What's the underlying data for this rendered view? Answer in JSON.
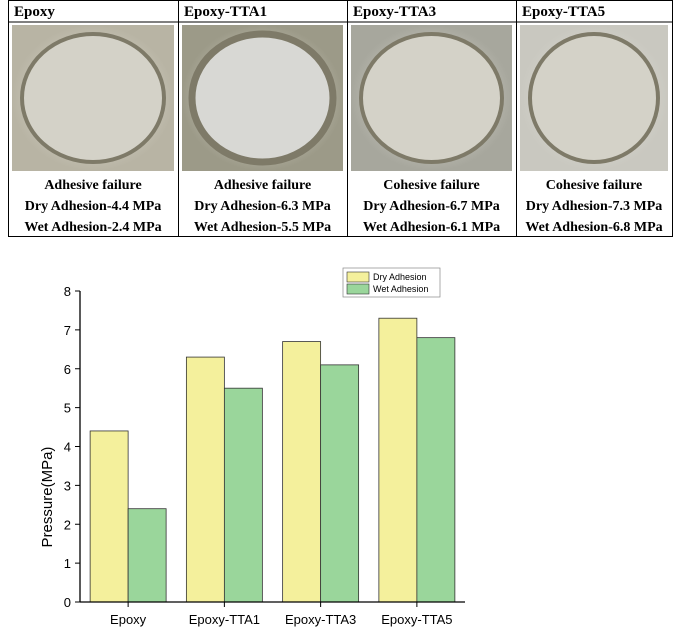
{
  "panels": [
    {
      "title": "Epoxy",
      "failure": "Adhesive failure",
      "dry": "Dry Adhesion-4.4 MPa",
      "wet": "Wet Adhesion-2.4 MPa"
    },
    {
      "title": "Epoxy-TTA1",
      "failure": "Adhesive failure",
      "dry": "Dry Adhesion-6.3 MPa",
      "wet": "Wet Adhesion-5.5 MPa"
    },
    {
      "title": "Epoxy-TTA3",
      "failure": "Cohesive failure",
      "dry": "Dry Adhesion-6.7 MPa",
      "wet": "Wet Adhesion-6.1 MPa"
    },
    {
      "title": "Epoxy-TTA5",
      "failure": "Cohesive failure",
      "dry": "Dry Adhesion-7.3 MPa",
      "wet": "Wet Adhesion-6.8 MPa"
    }
  ],
  "chart_data": {
    "type": "bar",
    "y_label": "Pressure(MPa)",
    "categories": [
      "Epoxy",
      "Epoxy-TTA1",
      "Epoxy-TTA3",
      "Epoxy-TTA5"
    ],
    "series": [
      {
        "name": "Dry Adhesion",
        "color": "#f4f09c",
        "values": [
          4.4,
          6.3,
          6.7,
          7.3
        ]
      },
      {
        "name": "Wet Adhesion",
        "color": "#9ad69b",
        "values": [
          2.4,
          5.5,
          6.1,
          6.8
        ]
      }
    ],
    "ylim": [
      0,
      8
    ],
    "yticks": [
      0,
      1,
      2,
      3,
      4,
      5,
      6,
      7,
      8
    ],
    "legend": "top"
  }
}
